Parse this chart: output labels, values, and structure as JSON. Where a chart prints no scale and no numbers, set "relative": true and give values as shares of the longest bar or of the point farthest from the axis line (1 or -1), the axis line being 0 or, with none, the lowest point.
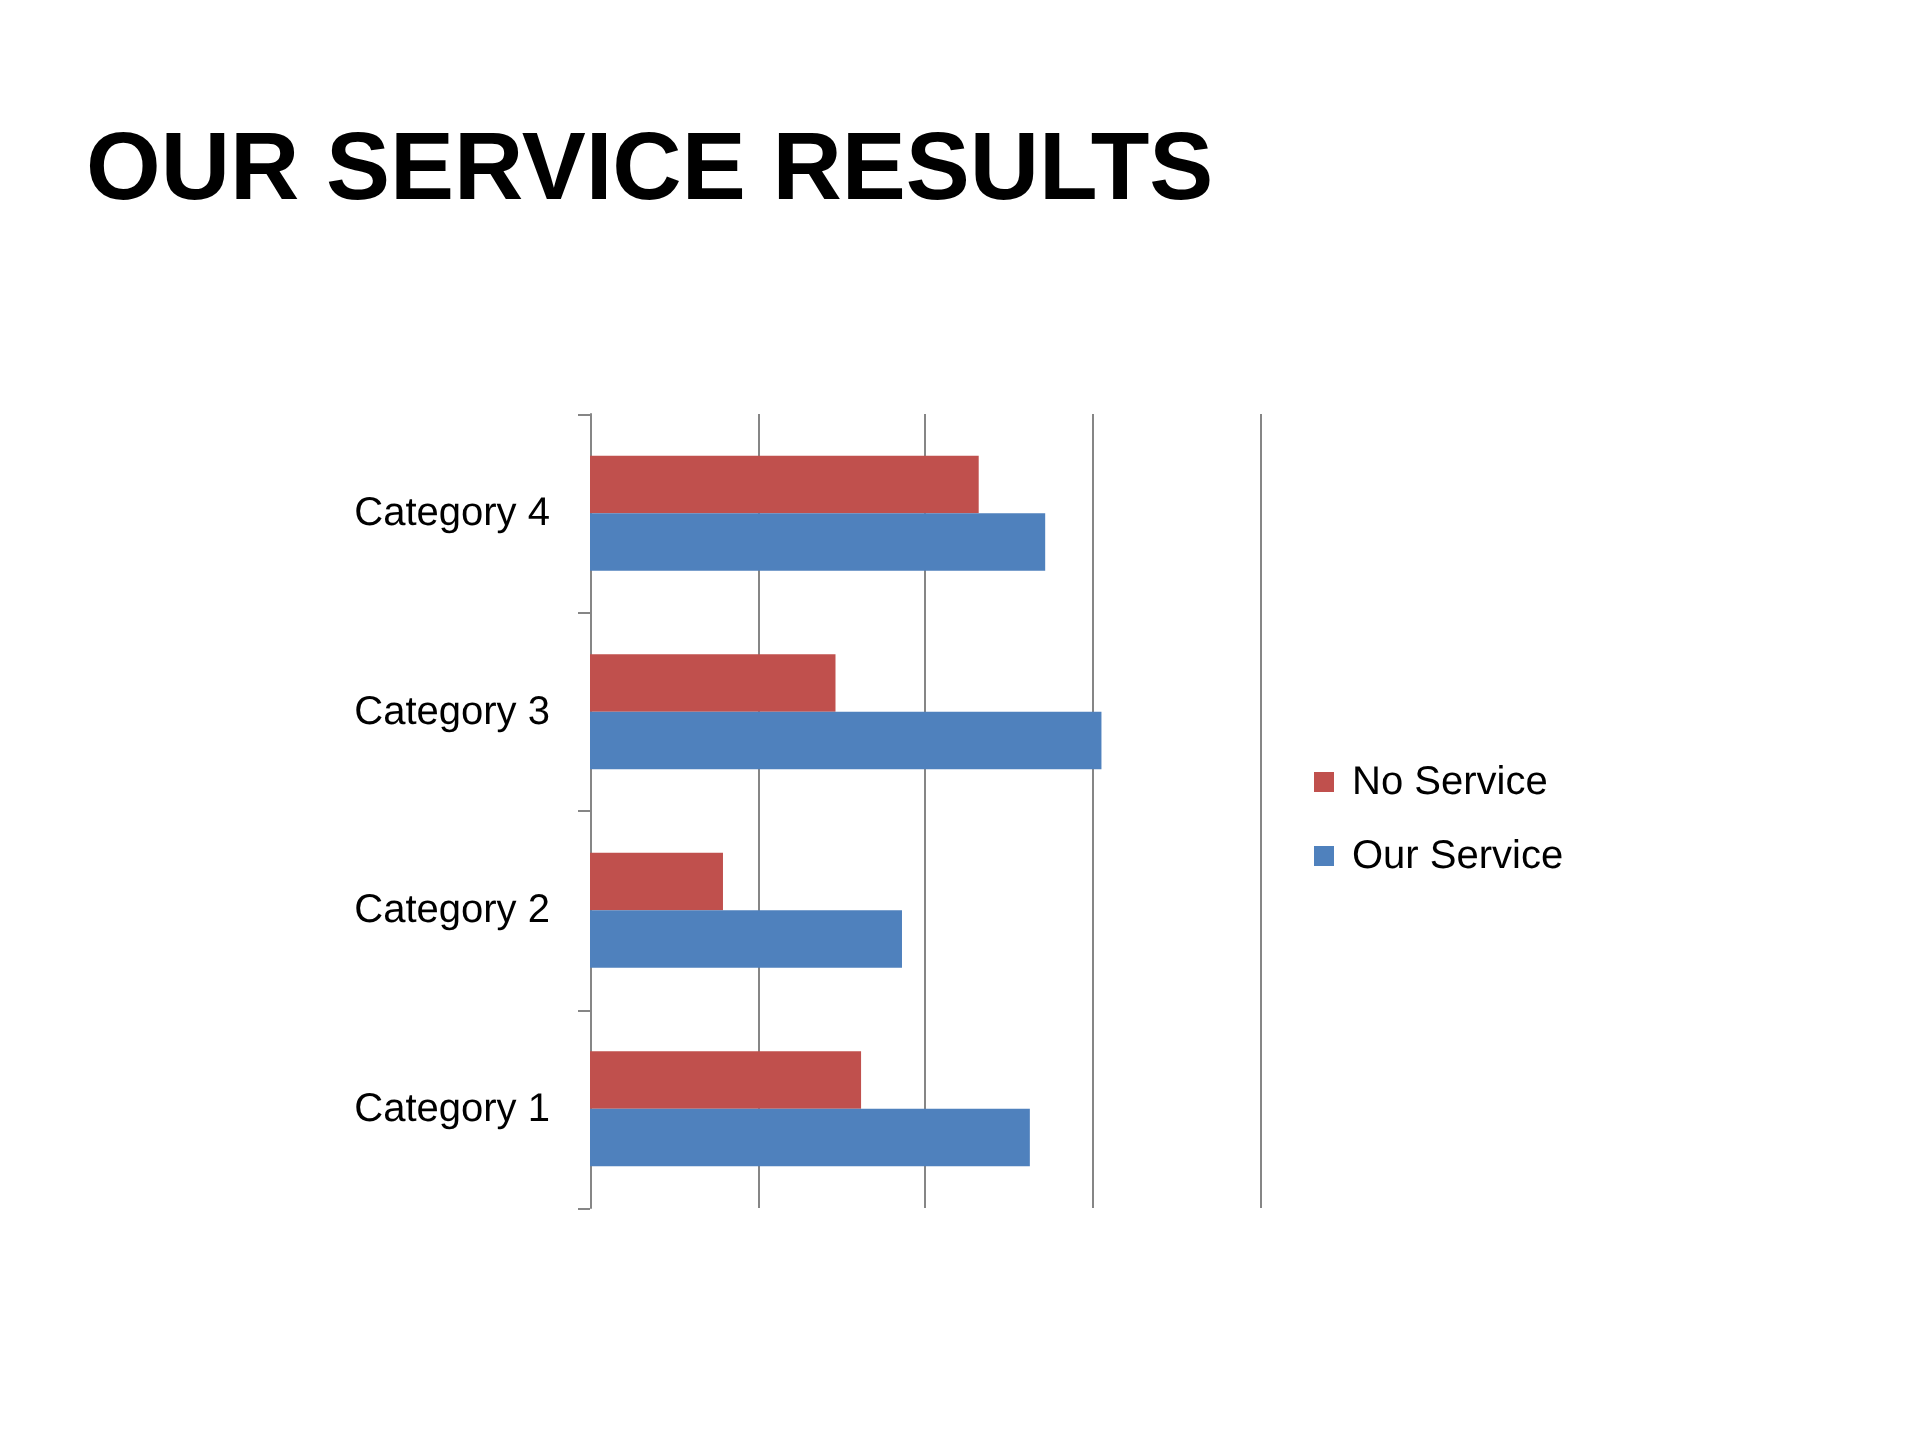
{
  "chart_data": {
    "type": "bar",
    "orientation": "horizontal",
    "relative": true,
    "title": "OUR SERVICE RESULTS",
    "categories": [
      "Category 4",
      "Category 3",
      "Category 2",
      "Category 1"
    ],
    "series": [
      {
        "name": "No Service",
        "color": "#c0504d",
        "values": [
          0.76,
          0.48,
          0.26,
          0.53
        ]
      },
      {
        "name": "Our Service",
        "color": "#4f81bd",
        "values": [
          0.89,
          1,
          0.61,
          0.86
        ]
      }
    ],
    "grid": "x",
    "legend": "right"
  }
}
